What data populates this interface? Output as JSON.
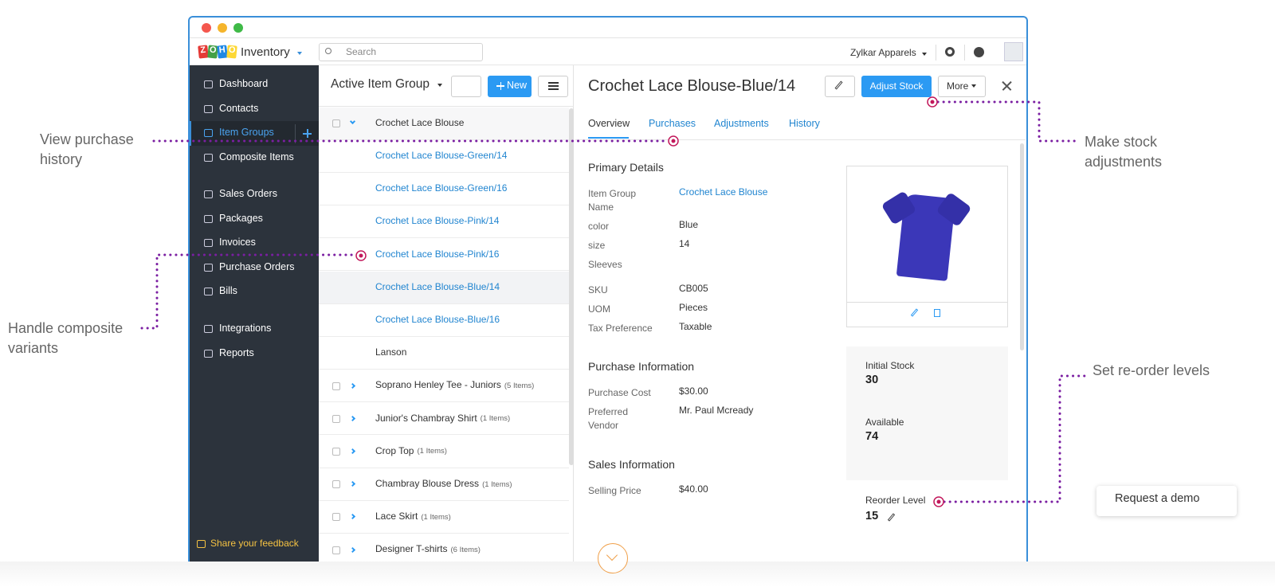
{
  "app": {
    "logo": [
      "Z",
      "O",
      "H",
      "O"
    ],
    "name": "Inventory",
    "search": "Search",
    "org": "Zylkar Apparels"
  },
  "sidebar": {
    "items": [
      "Dashboard",
      "Contacts",
      "Item Groups",
      "Composite Items",
      "Sales Orders",
      "Packages",
      "Invoices",
      "Purchase Orders",
      "Bills",
      "Integrations",
      "Reports"
    ],
    "feedback": "Share your feedback"
  },
  "list": {
    "title": "Active Item Group",
    "new": "New",
    "rows": [
      {
        "name": "Crochet Lace Blouse"
      },
      {
        "name": "Crochet Lace Blouse-Green/14"
      },
      {
        "name": "Crochet Lace Blouse-Green/16"
      },
      {
        "name": "Crochet Lace Blouse-Pink/14"
      },
      {
        "name": "Crochet Lace Blouse-Pink/16"
      },
      {
        "name": "Crochet Lace Blouse-Blue/14"
      },
      {
        "name": "Crochet Lace Blouse-Blue/16"
      },
      {
        "name": "Lanson"
      },
      {
        "name": "Soprano Henley Tee - Juniors",
        "count": "(5 Items)"
      },
      {
        "name": "Junior's Chambray Shirt",
        "count": "(1 Items)"
      },
      {
        "name": "Crop Top",
        "count": "(1 Items)"
      },
      {
        "name": "Chambray Blouse Dress",
        "count": "(1 Items)"
      },
      {
        "name": "Lace Skirt",
        "count": "(1 Items)"
      },
      {
        "name": "Designer T-shirts",
        "count": "(6 Items)"
      }
    ]
  },
  "detail": {
    "title": "Crochet Lace Blouse-Blue/14",
    "adjust": "Adjust Stock",
    "more": "More",
    "tabs": [
      "Overview",
      "Purchases",
      "Adjustments",
      "History"
    ],
    "primary": {
      "heading": "Primary Details",
      "fields": [
        {
          "label": "Item Group Name",
          "value": "Crochet Lace Blouse"
        },
        {
          "label": "color",
          "value": "Blue"
        },
        {
          "label": "size",
          "value": "14"
        },
        {
          "label": "Sleeves"
        },
        {
          "label": "SKU",
          "value": "CB005"
        },
        {
          "label": "UOM",
          "value": "Pieces"
        },
        {
          "label": "Tax Preference",
          "value": "Taxable"
        }
      ]
    },
    "purchase": {
      "heading": "Purchase Information",
      "fields": [
        {
          "label": "Purchase Cost",
          "value": "$30.00"
        },
        {
          "label": "Preferred Vendor",
          "value": "Mr. Paul Mcready"
        }
      ]
    },
    "sales": {
      "heading": "Sales Information",
      "fields": [
        {
          "label": "Selling Price",
          "value": "$40.00"
        }
      ]
    },
    "stock": [
      {
        "label": "Initial Stock",
        "value": "30"
      },
      {
        "label": "Available",
        "value": "74"
      },
      {
        "label": "Reorder Level",
        "value": "15"
      }
    ]
  },
  "callouts": [
    "View purchase history",
    "Handle composite variants",
    "Make stock adjustments",
    "Set re-order levels"
  ],
  "demo": "Request a demo"
}
